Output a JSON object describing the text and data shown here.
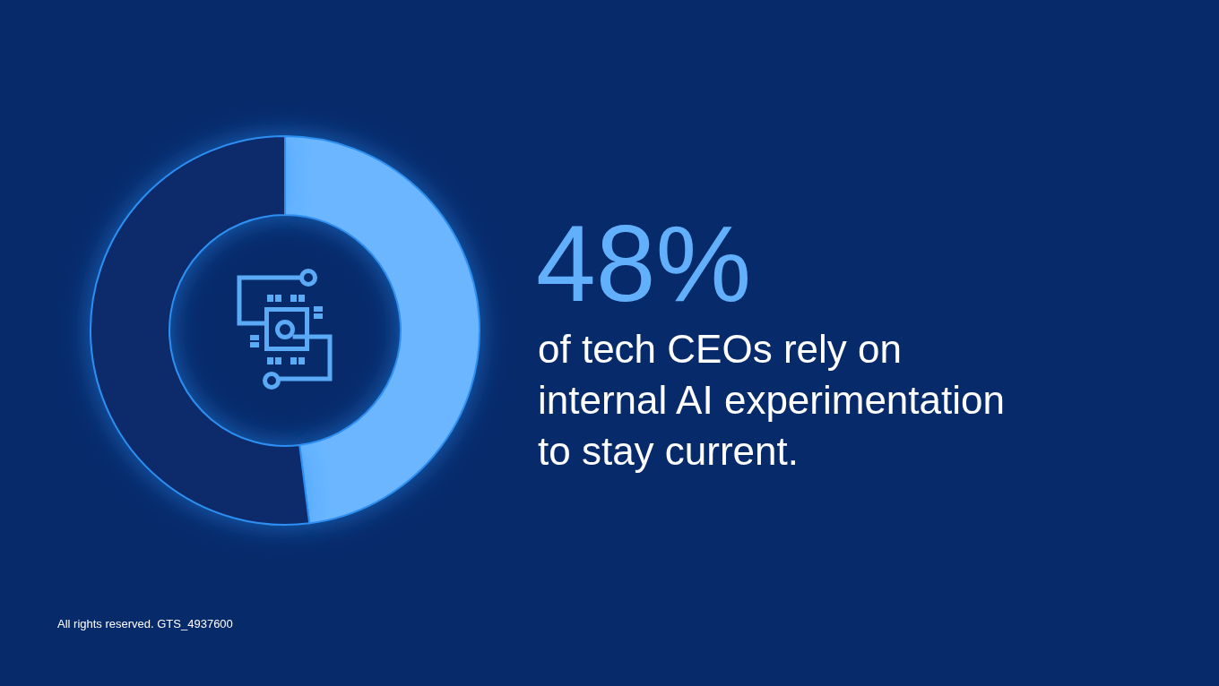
{
  "chart_data": {
    "type": "donut",
    "categories": [
      "of tech CEOs rely on internal AI experimentation to stay current.",
      null
    ],
    "values": [
      48,
      52
    ],
    "colors": [
      "#6cb6ff",
      "#072a6b"
    ],
    "value_labels": [
      "48%",
      null
    ],
    "annotations": [
      "All rights reserved. GTS_4937600"
    ]
  }
}
